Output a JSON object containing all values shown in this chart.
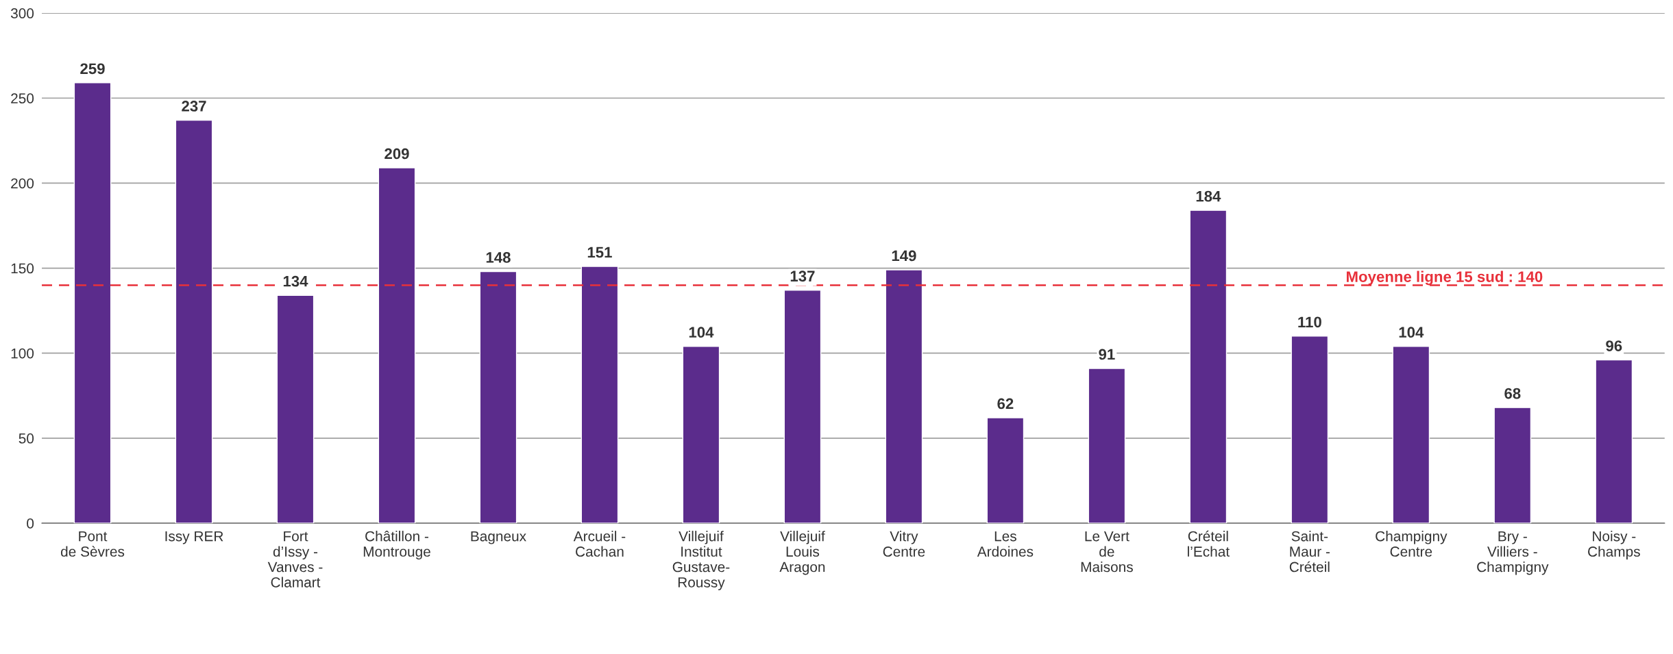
{
  "chart_data": {
    "type": "bar",
    "categories": [
      "Pont\nde Sèvres",
      "Issy RER",
      "Fort\nd’Issy -\nVanves -\nClamart",
      "Châtillon -\nMontrouge",
      "Bagneux",
      "Arcueil -\nCachan",
      "Villejuif\nInstitut\nGustave-\nRoussy",
      "Villejuif\nLouis\nAragon",
      "Vitry\nCentre",
      "Les\nArdoines",
      "Le Vert\nde\nMaisons",
      "Créteil\nl’Echat",
      "Saint-\nMaur -\nCréteil",
      "Champigny\nCentre",
      "Bry -\nVilliers -\nChampigny",
      "Noisy -\nChamps"
    ],
    "values": [
      259,
      237,
      134,
      209,
      148,
      151,
      104,
      137,
      149,
      62,
      91,
      184,
      110,
      104,
      68,
      96
    ],
    "color": "#5b2c8c",
    "data_labels": true,
    "ylim": [
      0,
      300
    ],
    "yticks": [
      0,
      50,
      100,
      150,
      200,
      250,
      300
    ],
    "grid": "y",
    "ref_lines": [
      {
        "axis": "y",
        "value": 140,
        "label": "Moyenne ligne 15 sud : 140",
        "color": "#e8303a",
        "line_style": "dashed"
      }
    ]
  }
}
